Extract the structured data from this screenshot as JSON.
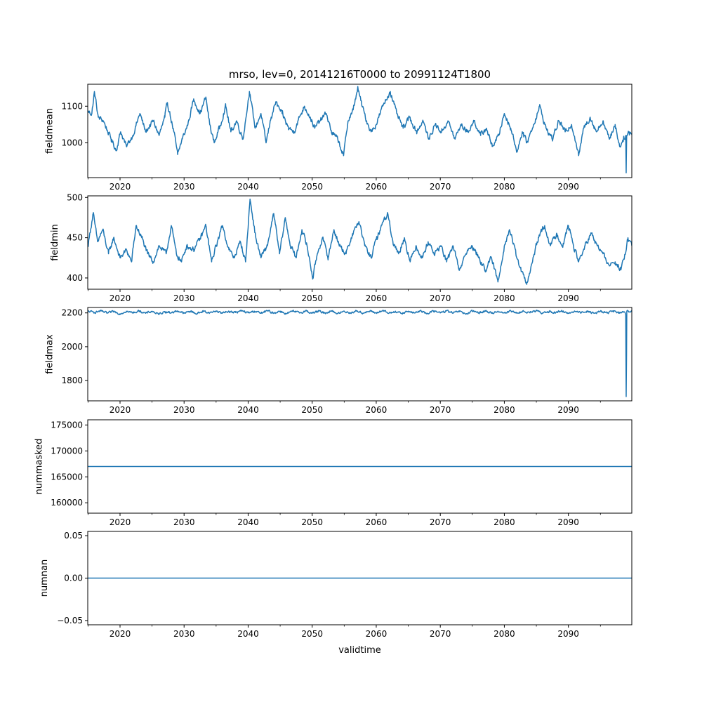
{
  "figure": {
    "title": "mrso, lev=0, 20141216T0000 to 20991124T1800",
    "xlabel": "validtime"
  },
  "chart_data": [
    {
      "type": "line",
      "name": "fieldmean",
      "ylabel": "fieldmean",
      "xlim": [
        2014.96,
        2099.9
      ],
      "ylim": [
        905,
        1160
      ],
      "yticks": [
        1000,
        1100
      ],
      "xticks": [
        2020,
        2030,
        2040,
        2050,
        2060,
        2070,
        2080,
        2090
      ],
      "color": "#1f77b4",
      "series_anchors": [
        [
          2015.0,
          1085
        ],
        [
          2015.6,
          1080
        ],
        [
          2016.0,
          1140
        ],
        [
          2016.6,
          1070
        ],
        [
          2017.4,
          1060
        ],
        [
          2018.6,
          1010
        ],
        [
          2019.4,
          980
        ],
        [
          2020.1,
          1030
        ],
        [
          2021.0,
          990
        ],
        [
          2022.0,
          1020
        ],
        [
          2023.1,
          1080
        ],
        [
          2024.0,
          1030
        ],
        [
          2025.2,
          1060
        ],
        [
          2026.1,
          1020
        ],
        [
          2027.0,
          1070
        ],
        [
          2027.4,
          1110
        ],
        [
          2028.4,
          1030
        ],
        [
          2029.0,
          968
        ],
        [
          2029.7,
          1010
        ],
        [
          2030.6,
          1050
        ],
        [
          2031.5,
          1120
        ],
        [
          2032.5,
          1080
        ],
        [
          2033.4,
          1125
        ],
        [
          2034.0,
          1050
        ],
        [
          2034.7,
          1000
        ],
        [
          2035.5,
          1040
        ],
        [
          2036.5,
          1100
        ],
        [
          2037.3,
          1030
        ],
        [
          2038.2,
          1060
        ],
        [
          2039.2,
          1010
        ],
        [
          2040.2,
          1140
        ],
        [
          2041.1,
          1040
        ],
        [
          2042.0,
          1080
        ],
        [
          2042.8,
          1000
        ],
        [
          2043.6,
          1070
        ],
        [
          2044.3,
          1110
        ],
        [
          2045.3,
          1080
        ],
        [
          2046.3,
          1040
        ],
        [
          2047.2,
          1030
        ],
        [
          2048.0,
          1070
        ],
        [
          2048.8,
          1100
        ],
        [
          2049.7,
          1070
        ],
        [
          2050.4,
          1040
        ],
        [
          2051.2,
          1060
        ],
        [
          2052.2,
          1080
        ],
        [
          2053.0,
          1030
        ],
        [
          2054.0,
          1010
        ],
        [
          2054.9,
          965
        ],
        [
          2055.6,
          1060
        ],
        [
          2056.4,
          1090
        ],
        [
          2057.1,
          1150
        ],
        [
          2057.8,
          1100
        ],
        [
          2058.5,
          1060
        ],
        [
          2059.2,
          1030
        ],
        [
          2060.0,
          1050
        ],
        [
          2061.0,
          1100
        ],
        [
          2062.2,
          1140
        ],
        [
          2063.2,
          1080
        ],
        [
          2064.2,
          1040
        ],
        [
          2065.2,
          1070
        ],
        [
          2066.3,
          1030
        ],
        [
          2067.3,
          1060
        ],
        [
          2068.2,
          1010
        ],
        [
          2069.2,
          1050
        ],
        [
          2070.2,
          1030
        ],
        [
          2071.2,
          1060
        ],
        [
          2072.3,
          1010
        ],
        [
          2073.2,
          1050
        ],
        [
          2074.3,
          1030
        ],
        [
          2075.3,
          1060
        ],
        [
          2076.3,
          1020
        ],
        [
          2077.2,
          1040
        ],
        [
          2078.1,
          990
        ],
        [
          2079.1,
          1020
        ],
        [
          2080.0,
          1080
        ],
        [
          2081.0,
          1040
        ],
        [
          2082.0,
          975
        ],
        [
          2082.8,
          1030
        ],
        [
          2083.5,
          1000
        ],
        [
          2084.4,
          1040
        ],
        [
          2085.5,
          1100
        ],
        [
          2086.5,
          1040
        ],
        [
          2087.5,
          1010
        ],
        [
          2088.5,
          1060
        ],
        [
          2089.5,
          1030
        ],
        [
          2090.5,
          1050
        ],
        [
          2091.2,
          1000
        ],
        [
          2091.6,
          965
        ],
        [
          2092.4,
          1040
        ],
        [
          2093.4,
          1070
        ],
        [
          2094.4,
          1030
        ],
        [
          2095.4,
          1060
        ],
        [
          2096.4,
          1010
        ],
        [
          2097.3,
          1050
        ],
        [
          2098.0,
          990
        ],
        [
          2098.6,
          1010
        ],
        [
          2098.95,
          1020
        ],
        [
          2099.02,
          918
        ],
        [
          2099.1,
          1020
        ],
        [
          2099.5,
          1030
        ],
        [
          2099.9,
          1025
        ]
      ]
    },
    {
      "type": "line",
      "name": "fieldmin",
      "ylabel": "fieldmin",
      "xlim": [
        2014.96,
        2099.9
      ],
      "ylim": [
        386,
        502
      ],
      "yticks": [
        400,
        450,
        500
      ],
      "xticks": [
        2020,
        2030,
        2040,
        2050,
        2060,
        2070,
        2080,
        2090
      ],
      "color": "#1f77b4",
      "series_anchors": [
        [
          2015.0,
          440
        ],
        [
          2015.4,
          460
        ],
        [
          2015.8,
          480
        ],
        [
          2016.5,
          445
        ],
        [
          2017.3,
          460
        ],
        [
          2018.2,
          430
        ],
        [
          2019.0,
          450
        ],
        [
          2020.0,
          425
        ],
        [
          2021.0,
          435
        ],
        [
          2021.8,
          420
        ],
        [
          2022.5,
          465
        ],
        [
          2023.4,
          450
        ],
        [
          2024.3,
          430
        ],
        [
          2025.2,
          420
        ],
        [
          2026.1,
          440
        ],
        [
          2027.2,
          430
        ],
        [
          2028.0,
          465
        ],
        [
          2028.8,
          430
        ],
        [
          2029.6,
          420
        ],
        [
          2030.4,
          440
        ],
        [
          2031.5,
          435
        ],
        [
          2032.6,
          450
        ],
        [
          2033.4,
          465
        ],
        [
          2034.3,
          420
        ],
        [
          2035.0,
          440
        ],
        [
          2036.0,
          465
        ],
        [
          2037.0,
          435
        ],
        [
          2037.8,
          425
        ],
        [
          2038.8,
          445
        ],
        [
          2039.6,
          420
        ],
        [
          2040.3,
          498
        ],
        [
          2041.2,
          450
        ],
        [
          2042.0,
          425
        ],
        [
          2043.0,
          440
        ],
        [
          2044.0,
          480
        ],
        [
          2044.9,
          430
        ],
        [
          2045.8,
          475
        ],
        [
          2046.6,
          440
        ],
        [
          2047.5,
          425
        ],
        [
          2048.4,
          460
        ],
        [
          2049.2,
          440
        ],
        [
          2050.1,
          400
        ],
        [
          2050.8,
          430
        ],
        [
          2051.6,
          450
        ],
        [
          2052.5,
          425
        ],
        [
          2053.4,
          460
        ],
        [
          2054.3,
          440
        ],
        [
          2055.3,
          430
        ],
        [
          2056.3,
          455
        ],
        [
          2057.3,
          470
        ],
        [
          2058.2,
          440
        ],
        [
          2059.2,
          425
        ],
        [
          2060.1,
          450
        ],
        [
          2061.1,
          470
        ],
        [
          2061.8,
          480
        ],
        [
          2062.6,
          445
        ],
        [
          2063.5,
          430
        ],
        [
          2064.4,
          450
        ],
        [
          2065.3,
          420
        ],
        [
          2066.2,
          440
        ],
        [
          2067.2,
          425
        ],
        [
          2068.1,
          445
        ],
        [
          2069.1,
          430
        ],
        [
          2070.1,
          440
        ],
        [
          2071.0,
          420
        ],
        [
          2072.0,
          440
        ],
        [
          2073.0,
          410
        ],
        [
          2074.0,
          430
        ],
        [
          2075.0,
          440
        ],
        [
          2076.0,
          425
        ],
        [
          2077.0,
          410
        ],
        [
          2078.0,
          425
        ],
        [
          2079.0,
          395
        ],
        [
          2080.0,
          440
        ],
        [
          2080.8,
          460
        ],
        [
          2081.8,
          430
        ],
        [
          2082.6,
          410
        ],
        [
          2083.5,
          392
        ],
        [
          2084.4,
          420
        ],
        [
          2085.3,
          450
        ],
        [
          2086.3,
          465
        ],
        [
          2087.2,
          440
        ],
        [
          2088.2,
          455
        ],
        [
          2089.1,
          440
        ],
        [
          2090.0,
          465
        ],
        [
          2090.8,
          440
        ],
        [
          2091.6,
          420
        ],
        [
          2092.6,
          440
        ],
        [
          2093.6,
          455
        ],
        [
          2094.5,
          440
        ],
        [
          2095.4,
          430
        ],
        [
          2096.4,
          415
        ],
        [
          2097.3,
          420
        ],
        [
          2098.2,
          410
        ],
        [
          2098.9,
          430
        ],
        [
          2099.3,
          450
        ],
        [
          2099.9,
          440
        ]
      ]
    },
    {
      "type": "line",
      "name": "fieldmax",
      "ylabel": "fieldmax",
      "xlim": [
        2014.96,
        2099.9
      ],
      "ylim": [
        1680,
        2232
      ],
      "yticks": [
        1800,
        2000,
        2200
      ],
      "xticks": [
        2020,
        2030,
        2040,
        2050,
        2060,
        2070,
        2080,
        2090
      ],
      "color": "#1f77b4",
      "series_anchors": [
        [
          2015.0,
          2210
        ],
        [
          2016.0,
          2202
        ],
        [
          2017.0,
          2212
        ],
        [
          2018.0,
          2198
        ],
        [
          2019.0,
          2208
        ],
        [
          2020.0,
          2195
        ],
        [
          2021.0,
          2210
        ],
        [
          2022.0,
          2200
        ],
        [
          2023.0,
          2212
        ],
        [
          2024.0,
          2198
        ],
        [
          2025.0,
          2210
        ],
        [
          2026.0,
          2192
        ],
        [
          2027.0,
          2208
        ],
        [
          2028.0,
          2200
        ],
        [
          2029.0,
          2212
        ],
        [
          2030.0,
          2198
        ],
        [
          2031.0,
          2210
        ],
        [
          2032.0,
          2195
        ],
        [
          2033.0,
          2210
        ],
        [
          2034.0,
          2200
        ],
        [
          2035.0,
          2212
        ],
        [
          2036.0,
          2198
        ],
        [
          2037.0,
          2210
        ],
        [
          2038.0,
          2202
        ],
        [
          2039.0,
          2212
        ],
        [
          2040.0,
          2200
        ],
        [
          2041.0,
          2210
        ],
        [
          2042.0,
          2198
        ],
        [
          2043.0,
          2212
        ],
        [
          2044.0,
          2200
        ],
        [
          2045.0,
          2210
        ],
        [
          2046.0,
          2195
        ],
        [
          2047.0,
          2210
        ],
        [
          2048.0,
          2200
        ],
        [
          2049.0,
          2212
        ],
        [
          2050.0,
          2198
        ],
        [
          2051.0,
          2210
        ],
        [
          2052.0,
          2200
        ],
        [
          2053.0,
          2212
        ],
        [
          2054.0,
          2196
        ],
        [
          2055.0,
          2210
        ],
        [
          2056.0,
          2200
        ],
        [
          2057.0,
          2212
        ],
        [
          2058.0,
          2198
        ],
        [
          2059.0,
          2210
        ],
        [
          2060.0,
          2200
        ],
        [
          2061.0,
          2212
        ],
        [
          2062.0,
          2198
        ],
        [
          2063.0,
          2210
        ],
        [
          2064.0,
          2195
        ],
        [
          2065.0,
          2210
        ],
        [
          2066.0,
          2200
        ],
        [
          2067.0,
          2212
        ],
        [
          2068.0,
          2198
        ],
        [
          2069.0,
          2210
        ],
        [
          2070.0,
          2200
        ],
        [
          2071.0,
          2212
        ],
        [
          2072.0,
          2198
        ],
        [
          2073.0,
          2210
        ],
        [
          2074.0,
          2192
        ],
        [
          2075.0,
          2210
        ],
        [
          2076.0,
          2200
        ],
        [
          2077.0,
          2212
        ],
        [
          2078.0,
          2198
        ],
        [
          2079.0,
          2210
        ],
        [
          2080.0,
          2200
        ],
        [
          2081.0,
          2212
        ],
        [
          2082.0,
          2198
        ],
        [
          2083.0,
          2210
        ],
        [
          2084.0,
          2200
        ],
        [
          2085.0,
          2212
        ],
        [
          2086.0,
          2198
        ],
        [
          2087.0,
          2210
        ],
        [
          2088.0,
          2200
        ],
        [
          2089.0,
          2212
        ],
        [
          2090.0,
          2198
        ],
        [
          2091.0,
          2210
        ],
        [
          2092.0,
          2200
        ],
        [
          2093.0,
          2212
        ],
        [
          2094.0,
          2198
        ],
        [
          2095.0,
          2210
        ],
        [
          2096.0,
          2200
        ],
        [
          2097.0,
          2212
        ],
        [
          2098.0,
          2198
        ],
        [
          2098.8,
          2205
        ],
        [
          2098.95,
          2190
        ],
        [
          2099.02,
          1705
        ],
        [
          2099.08,
          1950
        ],
        [
          2099.12,
          2210
        ],
        [
          2099.5,
          2205
        ],
        [
          2099.9,
          2208
        ]
      ]
    },
    {
      "type": "line",
      "name": "nummasked",
      "ylabel": "nummasked",
      "xlim": [
        2014.96,
        2099.9
      ],
      "ylim": [
        158000,
        176000
      ],
      "yticks": [
        160000,
        165000,
        170000,
        175000
      ],
      "xticks": [
        2020,
        2030,
        2040,
        2050,
        2060,
        2070,
        2080,
        2090
      ],
      "color": "#1f77b4",
      "series_anchors": [
        [
          2014.96,
          167000
        ],
        [
          2099.9,
          167000
        ]
      ]
    },
    {
      "type": "line",
      "name": "numnan",
      "ylabel": "numnan",
      "xlim": [
        2014.96,
        2099.9
      ],
      "ylim": [
        -0.055,
        0.055
      ],
      "yticks": [
        -0.05,
        0.0,
        0.05
      ],
      "ytick_labels": [
        "−0.05",
        "0.00",
        "0.05"
      ],
      "xticks": [
        2020,
        2030,
        2040,
        2050,
        2060,
        2070,
        2080,
        2090
      ],
      "color": "#1f77b4",
      "series_anchors": [
        [
          2014.96,
          0
        ],
        [
          2099.9,
          0
        ]
      ]
    }
  ]
}
